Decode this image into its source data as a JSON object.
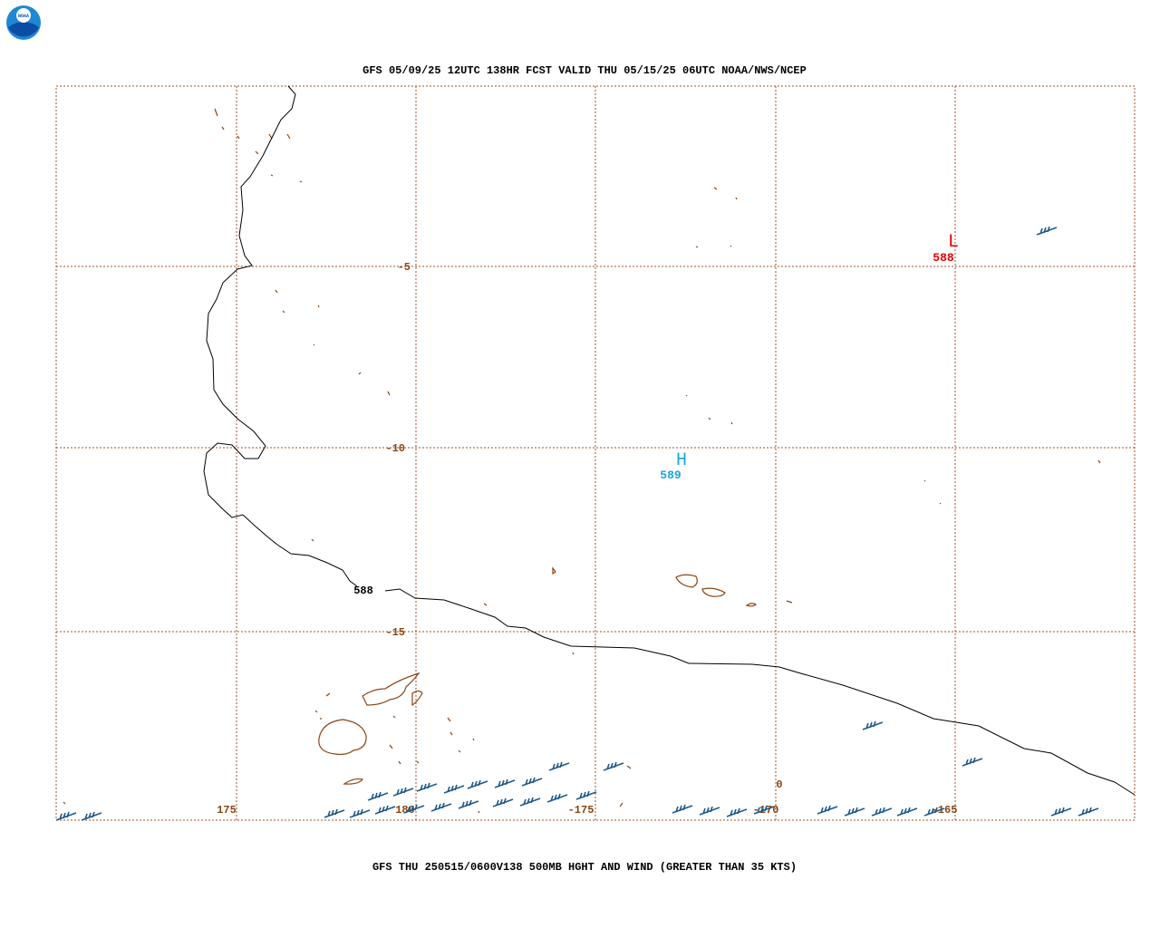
{
  "logo": {
    "text": "NOAA"
  },
  "header": {
    "title": "GFS 05/09/25 12UTC 138HR FCST VALID THU 05/15/25 06UTC NOAA/NWS/NCEP"
  },
  "grid": {
    "lat_labels": [
      "-5",
      "-10",
      "-15"
    ],
    "lon_labels": [
      "175",
      "180",
      "-175",
      "-170",
      "-165"
    ]
  },
  "contours": [
    {
      "label": "588"
    }
  ],
  "centers": [
    {
      "symbol": "L",
      "value": "588"
    },
    {
      "symbol": "H",
      "value": "589"
    }
  ],
  "stray_label": "0",
  "footer": {
    "caption": "GFS THU 250515/0600V138 500MB HGHT AND WIND (GREATER THAN 35 KTS)"
  }
}
